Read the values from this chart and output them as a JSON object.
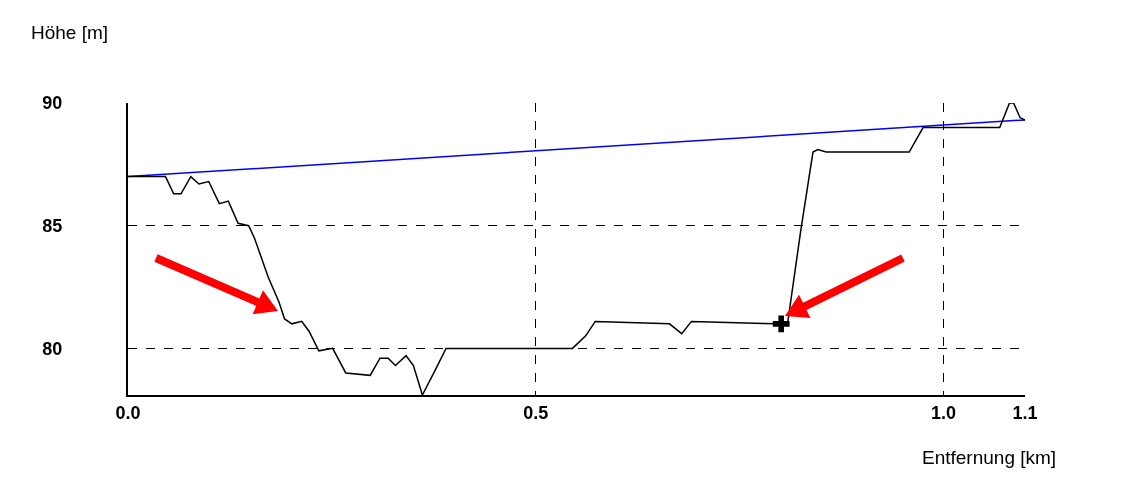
{
  "chart_data": {
    "type": "line",
    "xlabel": "Entfernung [km]",
    "ylabel": "Höhe [m]",
    "xlim": [
      0,
      1.1
    ],
    "xticks": [
      {
        "value": 0,
        "label": "0.0"
      },
      0.5,
      {
        "value": 1,
        "label": "1.0"
      },
      1.1
    ],
    "ylim": [
      78.1,
      90
    ],
    "yticks": [
      80,
      85,
      90
    ],
    "grid": true,
    "line_style": "solid",
    "marker": "none",
    "series": [
      {
        "color": "#0000ff",
        "x": [
          0,
          1.1
        ],
        "values": [
          87,
          89.31
        ]
      },
      {
        "color": "#000000",
        "x": [
          0,
          0.046,
          0.056,
          0.065,
          0.077,
          0.087,
          0.099,
          0.112,
          0.123,
          0.135,
          0.148,
          0.155,
          0.172,
          0.185,
          0.192,
          0.201,
          0.213,
          0.222,
          0.234,
          0.251,
          0.267,
          0.297,
          0.309,
          0.319,
          0.328,
          0.341,
          0.35,
          0.361,
          0.375,
          0.39,
          0.545,
          0.561,
          0.573,
          0.664,
          0.679,
          0.691,
          0.797,
          0.809,
          0.825,
          0.84,
          0.846,
          0.856,
          0.958,
          0.975,
          1.069,
          1.081,
          1.086,
          1.094,
          1.1
        ],
        "values": [
          87,
          87,
          86.3,
          86.3,
          87,
          86.7,
          86.8,
          85.9,
          86,
          85.1,
          85,
          84.5,
          82.9,
          81.9,
          81.2,
          81,
          81.1,
          80.7,
          79.9,
          80,
          79,
          78.9,
          79.6,
          79.6,
          79.3,
          79.7,
          79.3,
          78.1,
          79,
          80,
          80,
          80.5,
          81.1,
          81,
          80.6,
          81.1,
          81,
          81.05,
          84.8,
          88,
          88.1,
          88,
          88,
          89,
          89,
          90,
          90,
          89.4,
          89.3
        ]
      },
      {
        "type": "scatter",
        "color": "#000000",
        "marker": "cross",
        "x": [
          0.801
        ],
        "values": [
          81
        ]
      }
    ]
  }
}
